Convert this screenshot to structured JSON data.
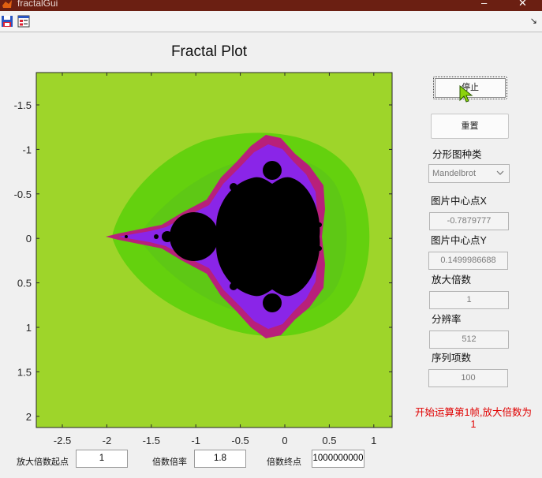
{
  "window": {
    "title": "fractalGui",
    "minimize_glyph": "–",
    "close_glyph": "✕"
  },
  "toolbar": {
    "icons": [
      "save-icon",
      "gui-layout-icon"
    ],
    "dock_glyph": "↘"
  },
  "plot": {
    "title": "Fractal Plot",
    "x_ticks": [
      "-2.5",
      "-2",
      "-1.5",
      "-1",
      "-0.5",
      "0",
      "0.5",
      "1"
    ],
    "y_ticks": [
      "-1.5",
      "-1",
      "-0.5",
      "0",
      "0.5",
      "1",
      "1.5",
      "2"
    ],
    "colors": {
      "background": "#9ed52a",
      "outer_band": "#64d10e",
      "inner_band": "#5ec815",
      "magenta": "#b8207a",
      "purple": "#8a25e8",
      "set": "#000000"
    }
  },
  "controls": {
    "stop_button": "停止",
    "reset_button": "重置",
    "fractal_type_label": "分形图种类",
    "fractal_type_value": "Mandelbrot",
    "center_x_label": "图片中心点X",
    "center_x_value": "-0.7879777",
    "center_y_label": "图片中心点Y",
    "center_y_value": "0.1499986688",
    "zoom_label": "放大倍数",
    "zoom_value": "1",
    "resolution_label": "分辨率",
    "resolution_value": "512",
    "terms_label": "序列项数",
    "terms_value": "100",
    "status_text": "开始运算第1帧,放大倍数为1"
  },
  "bottom": {
    "zoom_start_label": "放大倍数起点",
    "zoom_start_value": "1",
    "zoom_rate_label": "倍数倍率",
    "zoom_rate_value": "1.8",
    "zoom_end_label": "倍数终点",
    "zoom_end_value": "1000000000"
  }
}
